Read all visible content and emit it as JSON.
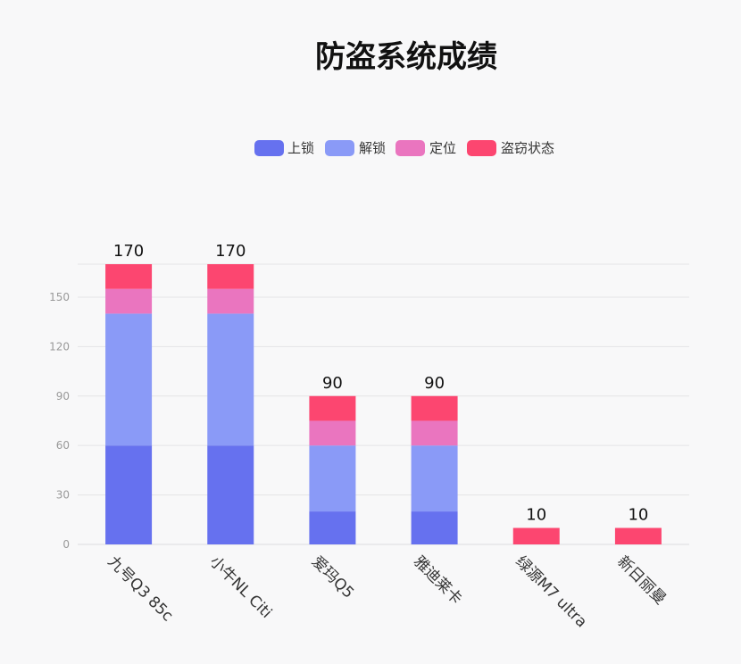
{
  "chart_data": {
    "type": "bar",
    "stacked": true,
    "title": "防盗系统成绩",
    "xlabel": "",
    "ylabel": "",
    "categories": [
      "九号Q3 85c",
      "小牛NL Citi",
      "爱玛Q5",
      "雅迪莱卡",
      "绿源M7 ultra",
      "新日丽曼"
    ],
    "series": [
      {
        "name": "上锁",
        "color": "#6671ef",
        "values": [
          60,
          60,
          20,
          20,
          0,
          0
        ]
      },
      {
        "name": "解锁",
        "color": "#8a9af7",
        "values": [
          80,
          80,
          40,
          40,
          0,
          0
        ]
      },
      {
        "name": "定位",
        "color": "#ea75bf",
        "values": [
          15,
          15,
          15,
          15,
          0,
          0
        ]
      },
      {
        "name": "盗窃状态",
        "color": "#fc4670",
        "values": [
          15,
          15,
          15,
          15,
          10,
          10
        ]
      }
    ],
    "totals": [
      170,
      170,
      90,
      90,
      10,
      10
    ],
    "yticks": [
      0,
      30,
      60,
      90,
      120,
      150
    ],
    "ylim": [
      0,
      170
    ],
    "grid": true,
    "legend_position": "top-center"
  }
}
